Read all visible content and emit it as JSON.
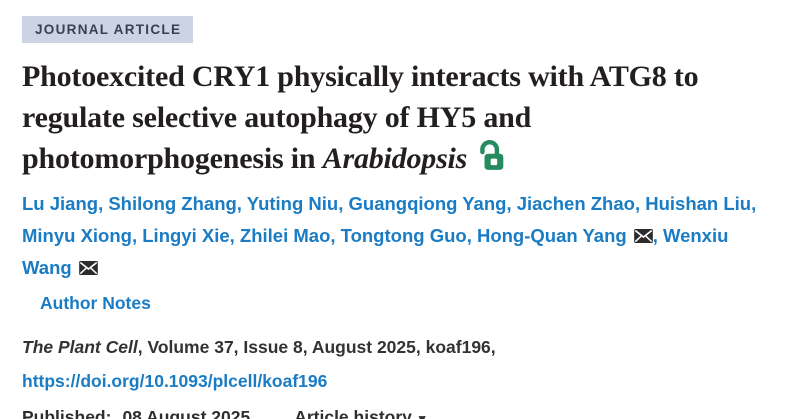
{
  "badge": {
    "label": "JOURNAL ARTICLE",
    "bg_color": "#ccd3e4",
    "text_color": "#39414e"
  },
  "title": {
    "text": "Photoexcited CRY1 physically interacts with ATG8 to regulate selective autophagy of HY5 and photomorphogenesis in ",
    "italic_text": "Arabidopsis",
    "color": "#231f20",
    "open_access_icon": "open-lock-icon",
    "open_access_color": "#268c60"
  },
  "authors": {
    "separator": ", ",
    "link_color": "#1a7cc4",
    "email_icon": "envelope-icon",
    "list": [
      {
        "name": "Lu Jiang",
        "has_email_icon": false
      },
      {
        "name": "Shilong Zhang",
        "has_email_icon": false
      },
      {
        "name": "Yuting Niu",
        "has_email_icon": false
      },
      {
        "name": "Guangqiong Yang",
        "has_email_icon": false
      },
      {
        "name": "Jiachen Zhao",
        "has_email_icon": false
      },
      {
        "name": "Huishan Liu",
        "has_email_icon": false
      },
      {
        "name": "Minyu Xiong",
        "has_email_icon": false
      },
      {
        "name": "Lingyi Xie",
        "has_email_icon": false
      },
      {
        "name": "Zhilei Mao",
        "has_email_icon": false
      },
      {
        "name": "Tongtong Guo",
        "has_email_icon": false
      },
      {
        "name": "Hong-Quan Yang",
        "has_email_icon": true
      },
      {
        "name": "Wenxiu Wang",
        "has_email_icon": true
      }
    ]
  },
  "author_notes": {
    "label": "Author Notes"
  },
  "citation": {
    "journal_italic": "The Plant Cell",
    "details": ", Volume 37, Issue 8, August 2025, koaf196,",
    "doi_url": "https://doi.org/10.1093/plcell/koaf196"
  },
  "published": {
    "label": "Published:",
    "date": "08 August 2025",
    "article_history_label": "Article history",
    "caret": "▾"
  }
}
